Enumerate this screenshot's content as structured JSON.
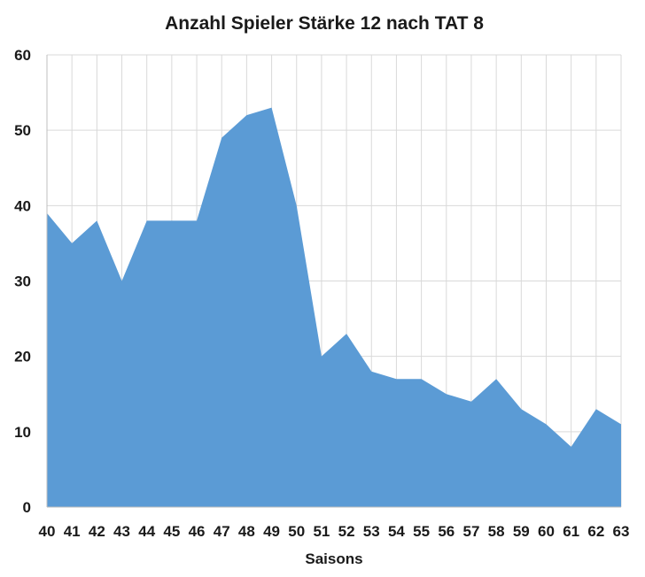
{
  "chart_data": {
    "type": "area",
    "title": "Anzahl Spieler Stärke 12 nach TAT 8",
    "xlabel": "Saisons",
    "ylabel": "",
    "x": [
      "40",
      "41",
      "42",
      "43",
      "44",
      "45",
      "46",
      "47",
      "48",
      "49",
      "50",
      "51",
      "52",
      "53",
      "54",
      "55",
      "56",
      "57",
      "58",
      "59",
      "60",
      "61",
      "62",
      "63"
    ],
    "values": [
      39,
      35,
      38,
      30,
      38,
      38,
      38,
      49,
      52,
      53,
      40,
      20,
      23,
      18,
      17,
      17,
      15,
      14,
      17,
      13,
      11,
      8,
      13,
      11
    ],
    "ylim": [
      0,
      60
    ],
    "yticks": [
      0,
      10,
      20,
      30,
      40,
      50,
      60
    ],
    "grid": true,
    "legend": "none",
    "colors": {
      "area": "#5b9bd5",
      "grid": "#d9d9d9",
      "text": "#1a1a1a"
    }
  }
}
